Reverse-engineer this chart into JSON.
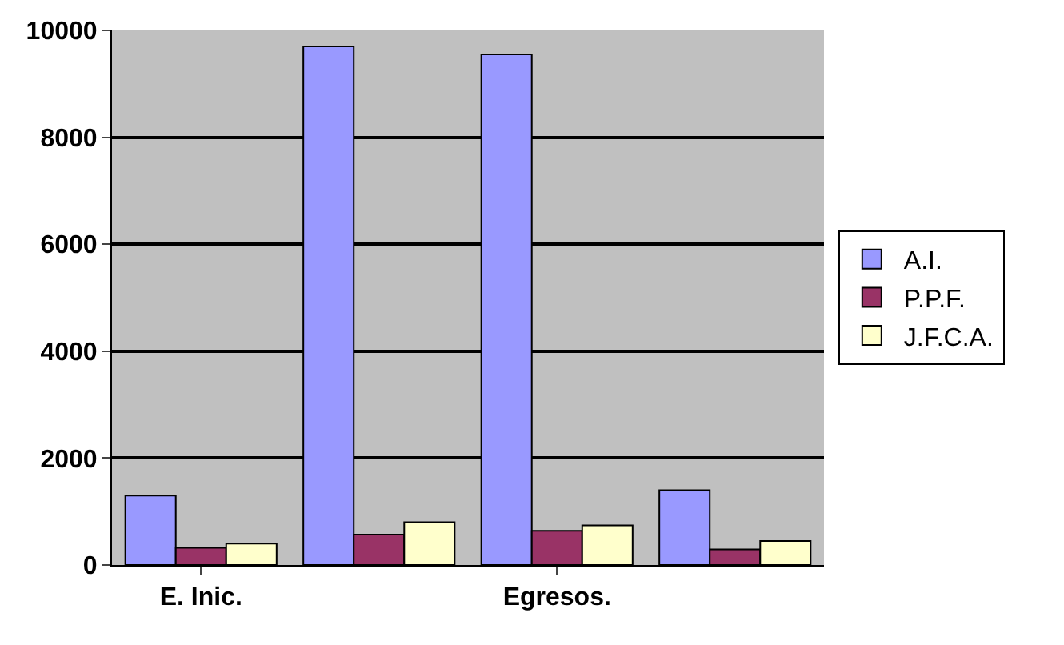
{
  "chart_data": {
    "type": "bar",
    "categories": [
      "E. Inic.",
      null,
      "Egresos.",
      null
    ],
    "series": [
      {
        "name": "A.I.",
        "color": "#9999ff",
        "values": [
          1300,
          9700,
          9550,
          1400
        ]
      },
      {
        "name": "P.P.F.",
        "color": "#993366",
        "values": [
          320,
          570,
          640,
          290
        ]
      },
      {
        "name": "J.F.C.A.",
        "color": "#ffffcc",
        "values": [
          400,
          800,
          740,
          450
        ]
      }
    ],
    "ylim": [
      0,
      10000
    ],
    "yticks": [
      0,
      2000,
      4000,
      6000,
      8000,
      10000
    ],
    "grid": "y",
    "legend": "right"
  }
}
